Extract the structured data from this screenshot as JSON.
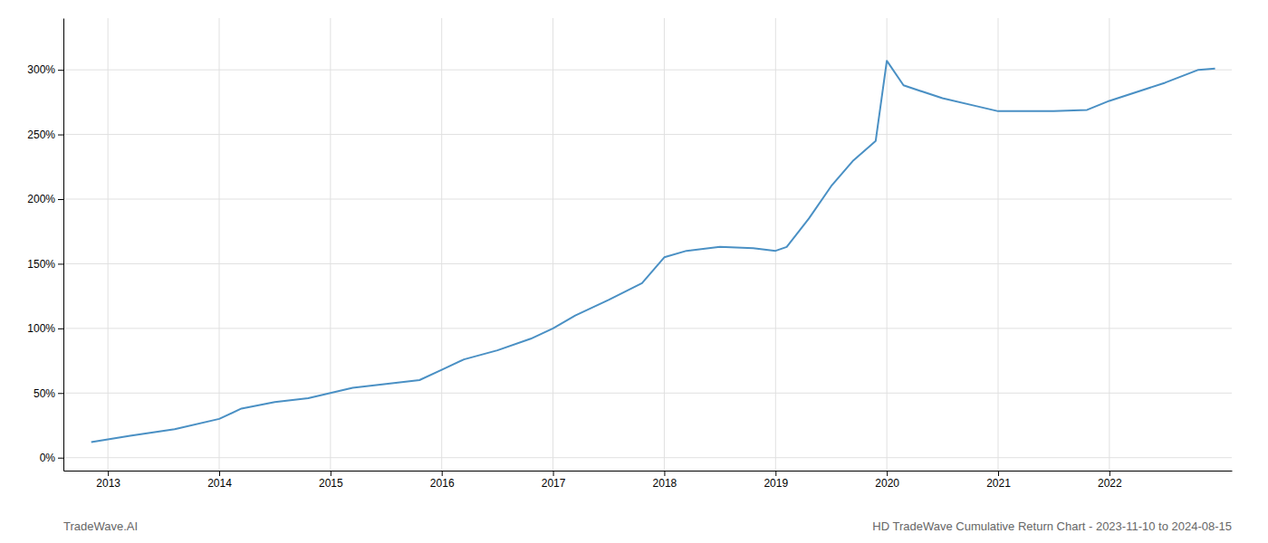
{
  "chart_data": {
    "type": "line",
    "title": "HD TradeWave Cumulative Return Chart - 2023-11-10 to 2024-08-15",
    "annotations": [
      "TradeWave.AI"
    ],
    "x": [
      2012.85,
      2013.2,
      2013.6,
      2014.0,
      2014.2,
      2014.5,
      2014.8,
      2015.0,
      2015.2,
      2015.5,
      2015.8,
      2016.0,
      2016.2,
      2016.5,
      2016.8,
      2017.0,
      2017.2,
      2017.5,
      2017.8,
      2018.0,
      2018.2,
      2018.5,
      2018.8,
      2019.0,
      2019.1,
      2019.3,
      2019.5,
      2019.7,
      2019.9,
      2020.0,
      2020.15,
      2020.5,
      2020.8,
      2021.0,
      2021.5,
      2021.8,
      2022.0,
      2022.5,
      2022.8,
      2022.95
    ],
    "values": [
      0.12,
      0.17,
      0.22,
      0.3,
      0.38,
      0.43,
      0.46,
      0.5,
      0.54,
      0.57,
      0.6,
      0.68,
      0.76,
      0.83,
      0.92,
      1.0,
      1.1,
      1.22,
      1.35,
      1.55,
      1.6,
      1.63,
      1.62,
      1.6,
      1.63,
      1.85,
      2.1,
      2.3,
      2.45,
      3.07,
      2.88,
      2.78,
      2.72,
      2.68,
      2.68,
      2.69,
      2.76,
      2.9,
      3.0,
      3.01
    ],
    "color": "#4a90c4",
    "xlim": [
      2012.6,
      2023.1
    ],
    "xticks": [
      2013,
      2014,
      2015,
      2016,
      2017,
      2018,
      2019,
      2020,
      2021,
      2022
    ],
    "ylim": [
      -0.1,
      3.4
    ],
    "yticks": [
      {
        "value": 0.0,
        "label": "0%"
      },
      {
        "value": 0.5,
        "label": "50%"
      },
      {
        "value": 1.0,
        "label": "100%"
      },
      {
        "value": 1.5,
        "label": "150%"
      },
      {
        "value": 2.0,
        "label": "200%"
      },
      {
        "value": 2.5,
        "label": "250%"
      },
      {
        "value": 3.0,
        "label": "300%"
      }
    ],
    "grid": true
  }
}
